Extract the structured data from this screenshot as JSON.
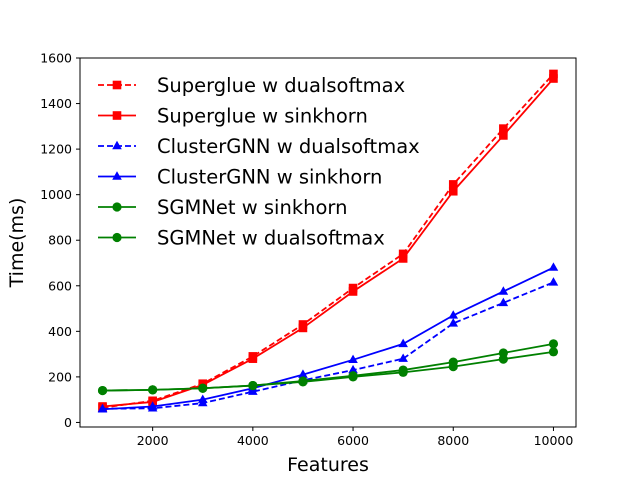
{
  "chart_data": {
    "type": "line",
    "xlabel": "Features",
    "ylabel": "Time(ms)",
    "xlim": [
      550,
      10450
    ],
    "ylim": [
      -20,
      1600
    ],
    "xticks": [
      2000,
      4000,
      6000,
      8000,
      10000
    ],
    "yticks": [
      0,
      200,
      400,
      600,
      800,
      1000,
      1200,
      1400,
      1600
    ],
    "xtick_labels": [
      "2000",
      "4000",
      "6000",
      "8000",
      "10000"
    ],
    "ytick_labels": [
      "0",
      "200",
      "400",
      "600",
      "800",
      "1000",
      "1200",
      "1400",
      "1600"
    ],
    "grid": false,
    "legend_position": "top-left",
    "x": [
      1000,
      2000,
      3000,
      4000,
      5000,
      6000,
      7000,
      8000,
      9000,
      10000
    ],
    "series": [
      {
        "name": "Superglue w dualsoftmax",
        "color": "#ff0000",
        "linestyle": "dashed",
        "marker": "square",
        "values": [
          65,
          95,
          170,
          290,
          430,
          590,
          740,
          1045,
          1290,
          1530
        ]
      },
      {
        "name": "Superglue w sinkhorn",
        "color": "#ff0000",
        "linestyle": "solid",
        "marker": "square",
        "values": [
          70,
          90,
          165,
          280,
          415,
          575,
          720,
          1015,
          1260,
          1510
        ]
      },
      {
        "name": "ClusterGNN w dualsoftmax",
        "color": "#0000ff",
        "linestyle": "dashed",
        "marker": "triangle",
        "values": [
          60,
          62,
          85,
          135,
          185,
          230,
          280,
          435,
          525,
          615
        ]
      },
      {
        "name": "ClusterGNN w sinkhorn",
        "color": "#0000ff",
        "linestyle": "solid",
        "marker": "triangle",
        "values": [
          58,
          70,
          100,
          150,
          210,
          275,
          345,
          470,
          575,
          680
        ]
      },
      {
        "name": "SGMNet w sinkhorn",
        "color": "#008000",
        "linestyle": "solid",
        "marker": "circle",
        "values": [
          140,
          143,
          150,
          162,
          182,
          205,
          230,
          265,
          305,
          345
        ]
      },
      {
        "name": "SGMNet w dualsoftmax",
        "color": "#008000",
        "linestyle": "solid",
        "marker": "circle",
        "values": [
          140,
          143,
          150,
          162,
          178,
          200,
          220,
          245,
          278,
          310
        ]
      }
    ]
  }
}
